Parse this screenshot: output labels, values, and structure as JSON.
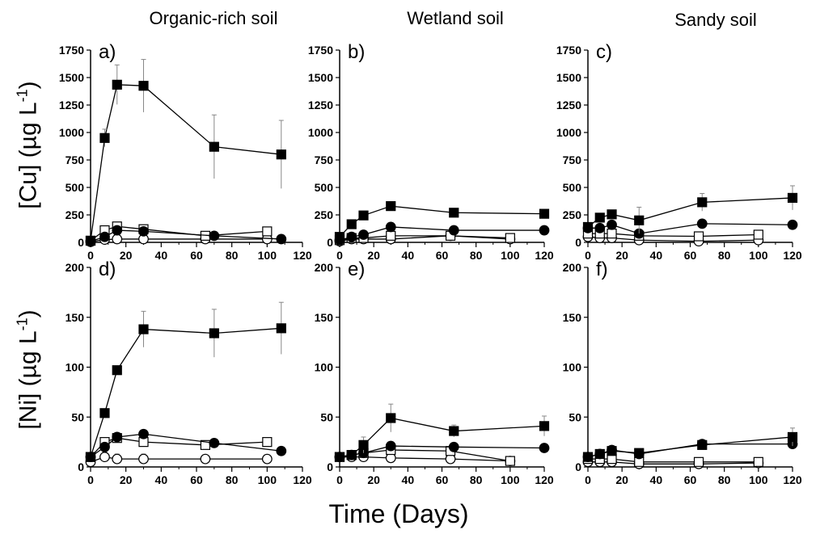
{
  "column_titles": [
    "Organic-rich soil",
    "Wetland soil",
    "Sandy soil"
  ],
  "ylabels": {
    "cu_prefix": "[Cu] (µg L",
    "ni_prefix": "[Ni] (µg L",
    "exponent": "-1",
    "suffix": ")"
  },
  "xlabel": "Time (Days)",
  "colors": {
    "axis": "#000000",
    "marker": "#000000",
    "open_fill": "#ffffff",
    "error_bar": "#888888"
  },
  "chart_data": [
    {
      "type": "line",
      "panel_label": "a)",
      "ylim": [
        0,
        1750
      ],
      "xlim": [
        0,
        120
      ],
      "yticks": [
        0,
        250,
        500,
        750,
        1000,
        1250,
        1500,
        1750
      ],
      "xticks": [
        0,
        20,
        40,
        60,
        80,
        100,
        120
      ],
      "series": [
        {
          "marker": "filled-square",
          "x": [
            0,
            8,
            15,
            30,
            70,
            108
          ],
          "y": [
            15,
            950,
            1435,
            1425,
            870,
            800
          ],
          "err": [
            0,
            80,
            180,
            240,
            290,
            310
          ]
        },
        {
          "marker": "filled-circle",
          "x": [
            0,
            8,
            15,
            30,
            70,
            108
          ],
          "y": [
            10,
            50,
            110,
            100,
            60,
            30
          ],
          "err": [
            0,
            0,
            0,
            0,
            0,
            0
          ]
        },
        {
          "marker": "open-square",
          "x": [
            0,
            8,
            15,
            30,
            65,
            100
          ],
          "y": [
            15,
            110,
            145,
            120,
            60,
            100
          ],
          "err": [
            0,
            0,
            0,
            0,
            0,
            0
          ]
        },
        {
          "marker": "open-circle",
          "x": [
            0,
            8,
            15,
            30,
            65,
            100
          ],
          "y": [
            5,
            25,
            30,
            30,
            30,
            30
          ],
          "err": [
            0,
            15,
            15,
            15,
            15,
            15
          ]
        }
      ]
    },
    {
      "type": "line",
      "panel_label": "b)",
      "ylim": [
        0,
        1750
      ],
      "xlim": [
        0,
        120
      ],
      "yticks": [
        0,
        250,
        500,
        750,
        1000,
        1250,
        1500,
        1750
      ],
      "xticks": [
        0,
        20,
        40,
        60,
        80,
        100,
        120
      ],
      "series": [
        {
          "marker": "filled-square",
          "x": [
            0,
            7,
            14,
            30,
            67,
            120
          ],
          "y": [
            50,
            165,
            245,
            330,
            270,
            260
          ],
          "err": [
            0,
            0,
            0,
            0,
            0,
            0
          ]
        },
        {
          "marker": "filled-circle",
          "x": [
            0,
            7,
            14,
            30,
            67,
            120
          ],
          "y": [
            20,
            50,
            70,
            140,
            110,
            110
          ],
          "err": [
            0,
            0,
            0,
            0,
            0,
            0
          ]
        },
        {
          "marker": "open-square",
          "x": [
            0,
            7,
            14,
            30,
            65,
            100
          ],
          "y": [
            20,
            40,
            40,
            60,
            60,
            40
          ],
          "err": [
            0,
            0,
            0,
            0,
            0,
            0
          ]
        },
        {
          "marker": "open-circle",
          "x": [
            0,
            7,
            14,
            30,
            65,
            100
          ],
          "y": [
            10,
            30,
            30,
            30,
            60,
            30
          ],
          "err": [
            0,
            20,
            20,
            40,
            40,
            30
          ]
        }
      ]
    },
    {
      "type": "line",
      "panel_label": "c)",
      "ylim": [
        0,
        1750
      ],
      "xlim": [
        0,
        120
      ],
      "yticks": [
        0,
        250,
        500,
        750,
        1000,
        1250,
        1500,
        1750
      ],
      "xticks": [
        0,
        20,
        40,
        60,
        80,
        100,
        120
      ],
      "series": [
        {
          "marker": "filled-square",
          "x": [
            0,
            7,
            14,
            30,
            67,
            120
          ],
          "y": [
            140,
            225,
            255,
            200,
            365,
            405
          ],
          "err": [
            0,
            0,
            0,
            120,
            80,
            110
          ]
        },
        {
          "marker": "filled-circle",
          "x": [
            0,
            7,
            14,
            30,
            67,
            120
          ],
          "y": [
            130,
            130,
            160,
            80,
            170,
            160
          ],
          "err": [
            0,
            0,
            0,
            0,
            0,
            0
          ]
        },
        {
          "marker": "open-square",
          "x": [
            0,
            7,
            14,
            30,
            65,
            100
          ],
          "y": [
            80,
            80,
            80,
            60,
            55,
            70
          ],
          "err": [
            0,
            0,
            0,
            0,
            0,
            0
          ]
        },
        {
          "marker": "open-circle",
          "x": [
            0,
            7,
            14,
            30,
            65,
            100
          ],
          "y": [
            50,
            40,
            40,
            20,
            10,
            20
          ],
          "err": [
            0,
            30,
            30,
            15,
            10,
            15
          ]
        }
      ]
    },
    {
      "type": "line",
      "panel_label": "d)",
      "ylim": [
        0,
        200
      ],
      "xlim": [
        0,
        120
      ],
      "yticks": [
        0,
        50,
        100,
        150,
        200
      ],
      "xticks": [
        0,
        20,
        40,
        60,
        80,
        100,
        120
      ],
      "series": [
        {
          "marker": "filled-square",
          "x": [
            0,
            8,
            15,
            30,
            70,
            108
          ],
          "y": [
            10,
            54,
            97,
            138,
            134,
            139
          ],
          "err": [
            0,
            0,
            0,
            18,
            24,
            26
          ]
        },
        {
          "marker": "filled-circle",
          "x": [
            0,
            8,
            15,
            30,
            70,
            108
          ],
          "y": [
            10,
            20,
            30,
            33,
            24,
            16
          ],
          "err": [
            0,
            0,
            0,
            0,
            0,
            0
          ]
        },
        {
          "marker": "open-square",
          "x": [
            0,
            8,
            15,
            30,
            65,
            100
          ],
          "y": [
            10,
            25,
            29,
            25,
            22,
            25
          ],
          "err": [
            0,
            0,
            0,
            0,
            0,
            0
          ]
        },
        {
          "marker": "open-circle",
          "x": [
            0,
            8,
            15,
            30,
            65,
            100
          ],
          "y": [
            5,
            10,
            8,
            8,
            8,
            8
          ],
          "err": [
            0,
            5,
            5,
            5,
            4,
            4
          ]
        }
      ]
    },
    {
      "type": "line",
      "panel_label": "e)",
      "ylim": [
        0,
        200
      ],
      "xlim": [
        0,
        120
      ],
      "yticks": [
        0,
        50,
        100,
        150,
        200
      ],
      "xticks": [
        0,
        20,
        40,
        60,
        80,
        100,
        120
      ],
      "series": [
        {
          "marker": "filled-square",
          "x": [
            0,
            7,
            14,
            30,
            67,
            120
          ],
          "y": [
            10,
            12,
            22,
            49,
            36,
            41
          ],
          "err": [
            0,
            0,
            8,
            14,
            6,
            10
          ]
        },
        {
          "marker": "filled-circle",
          "x": [
            0,
            7,
            14,
            30,
            67,
            120
          ],
          "y": [
            10,
            12,
            14,
            21,
            20,
            19
          ],
          "err": [
            0,
            0,
            0,
            0,
            0,
            0
          ]
        },
        {
          "marker": "open-square",
          "x": [
            0,
            7,
            14,
            30,
            65,
            100
          ],
          "y": [
            10,
            12,
            14,
            17,
            16,
            6
          ],
          "err": [
            0,
            0,
            0,
            0,
            0,
            0
          ]
        },
        {
          "marker": "open-circle",
          "x": [
            0,
            7,
            14,
            30,
            65,
            100
          ],
          "y": [
            10,
            10,
            10,
            9,
            8,
            6
          ],
          "err": [
            0,
            4,
            4,
            5,
            5,
            4
          ]
        }
      ]
    },
    {
      "type": "line",
      "panel_label": "f)",
      "ylim": [
        0,
        200
      ],
      "xlim": [
        0,
        120
      ],
      "yticks": [
        0,
        50,
        100,
        150,
        200
      ],
      "xticks": [
        0,
        20,
        40,
        60,
        80,
        100,
        120
      ],
      "series": [
        {
          "marker": "filled-square",
          "x": [
            0,
            7,
            14,
            30,
            67,
            120
          ],
          "y": [
            10,
            13,
            16,
            14,
            22,
            30
          ],
          "err": [
            0,
            0,
            0,
            0,
            0,
            9
          ]
        },
        {
          "marker": "filled-circle",
          "x": [
            0,
            7,
            14,
            30,
            67,
            120
          ],
          "y": [
            10,
            13,
            17,
            13,
            23,
            23
          ],
          "err": [
            0,
            0,
            0,
            0,
            0,
            0
          ]
        },
        {
          "marker": "open-square",
          "x": [
            0,
            7,
            14,
            30,
            65,
            100
          ],
          "y": [
            8,
            8,
            8,
            5,
            5,
            5
          ],
          "err": [
            0,
            0,
            0,
            0,
            0,
            0
          ]
        },
        {
          "marker": "open-circle",
          "x": [
            0,
            7,
            14,
            30,
            65,
            100
          ],
          "y": [
            5,
            5,
            5,
            3,
            3,
            4
          ],
          "err": [
            0,
            3,
            3,
            3,
            3,
            3
          ]
        }
      ]
    }
  ]
}
